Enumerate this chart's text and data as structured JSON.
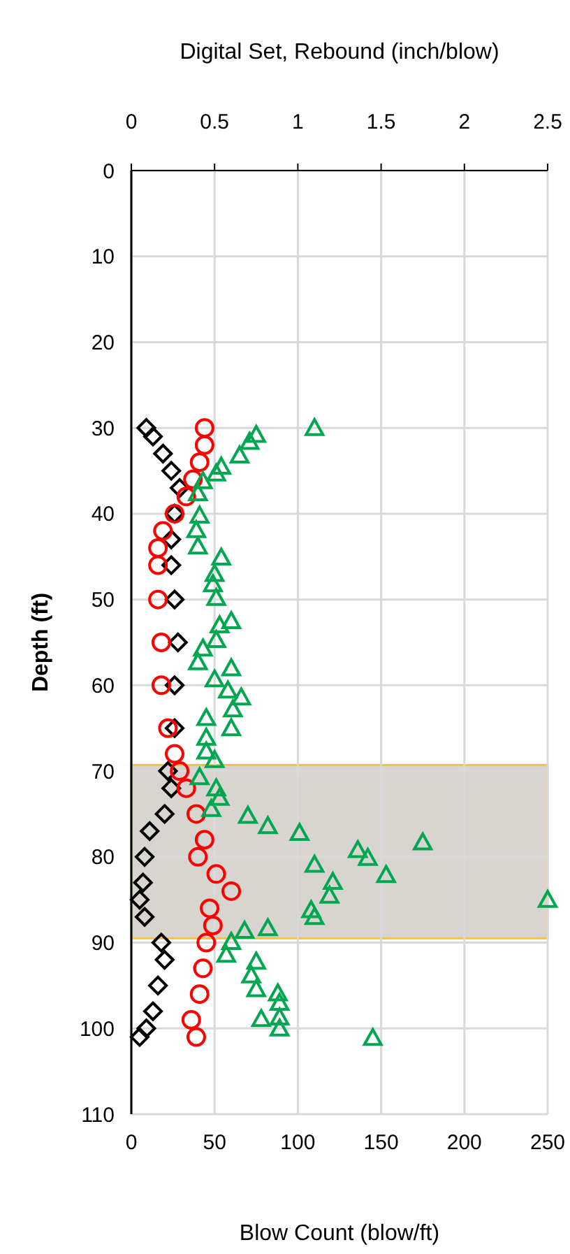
{
  "chart_data": {
    "type": "scatter",
    "xlabel": "Blow Count (blow/ft)",
    "x2label": "Digital Set, Rebound (inch/blow)",
    "ylabel": "Depth (ft)",
    "xlim": [
      0,
      250
    ],
    "xticks": [
      0,
      50,
      100,
      150,
      200,
      250
    ],
    "x2lim": [
      0,
      2.5
    ],
    "x2ticks": [
      0,
      0.5,
      1,
      1.5,
      2,
      2.5
    ],
    "ylim": [
      110,
      0
    ],
    "yticks": [
      0,
      10,
      20,
      30,
      40,
      50,
      60,
      70,
      80,
      90,
      100,
      110
    ],
    "grid": true,
    "bands": [
      {
        "axis": "y",
        "from": 69.3,
        "to": 89.5,
        "color": "#d8d5d1"
      }
    ],
    "series": [
      {
        "marker": "diamond",
        "color": "#000000",
        "axis": "x2",
        "x": [
          0.09,
          0.13,
          0.19,
          0.24,
          0.29,
          0.26,
          0.24,
          0.24,
          0.26,
          0.28,
          0.26,
          0.26,
          0.22,
          0.24,
          0.2,
          0.11,
          0.08,
          0.07,
          0.05,
          0.08,
          0.18,
          0.2,
          0.16,
          0.13,
          0.09,
          0.05
        ],
        "values": [
          30,
          31,
          33,
          35,
          37,
          40,
          43,
          46,
          50,
          55,
          60,
          65,
          70,
          72,
          75,
          77,
          80,
          83,
          85,
          87,
          90,
          92,
          95,
          98,
          100,
          101
        ]
      },
      {
        "marker": "circle",
        "color": "#ff0000",
        "axis": "x2",
        "x": [
          0.44,
          0.44,
          0.41,
          0.37,
          0.33,
          0.26,
          0.19,
          0.16,
          0.16,
          0.16,
          0.18,
          0.18,
          0.22,
          0.26,
          0.29,
          0.33,
          0.39,
          0.44,
          0.4,
          0.51,
          0.6,
          0.47,
          0.49,
          0.45,
          0.43,
          0.41,
          0.36,
          0.39
        ],
        "values": [
          30,
          32,
          34,
          36,
          38,
          40,
          42,
          44,
          46,
          50,
          55,
          60,
          65,
          68,
          70,
          72,
          75,
          78,
          80,
          82,
          84,
          86,
          88,
          90,
          93,
          96,
          99,
          101
        ]
      },
      {
        "marker": "triangle",
        "color": "#00a650",
        "x": [
          110,
          75,
          71,
          65,
          54,
          51,
          43,
          40,
          41,
          39,
          40,
          54,
          50,
          49,
          51,
          60,
          53,
          51,
          43,
          40,
          50,
          60,
          58,
          66,
          61,
          60,
          45,
          45,
          45,
          50,
          41,
          51,
          53,
          48,
          70,
          82,
          101,
          136,
          142,
          175,
          110,
          153,
          121,
          119,
          108,
          250,
          110,
          82,
          68,
          60,
          57,
          75,
          72,
          75,
          88,
          89,
          89,
          78,
          89,
          145
        ],
        "values": [
          30,
          30.8,
          31.6,
          33.2,
          34.5,
          35.3,
          36.2,
          37.6,
          40.2,
          41.9,
          43.8,
          45.1,
          47,
          48.2,
          49.8,
          52.5,
          53,
          54.7,
          55.7,
          57.3,
          59.3,
          58,
          60.6,
          61.4,
          62.8,
          65,
          63.8,
          66.1,
          67.7,
          68.7,
          70.7,
          72,
          73.1,
          74.4,
          75.2,
          76.4,
          77.2,
          79.2,
          80.1,
          78.3,
          80.9,
          82.1,
          82.9,
          84.5,
          86.2,
          85,
          87,
          88.3,
          88.6,
          89.9,
          91.4,
          92.2,
          93.8,
          95.4,
          95.9,
          97,
          98.7,
          98.9,
          100,
          101.1
        ]
      }
    ]
  }
}
